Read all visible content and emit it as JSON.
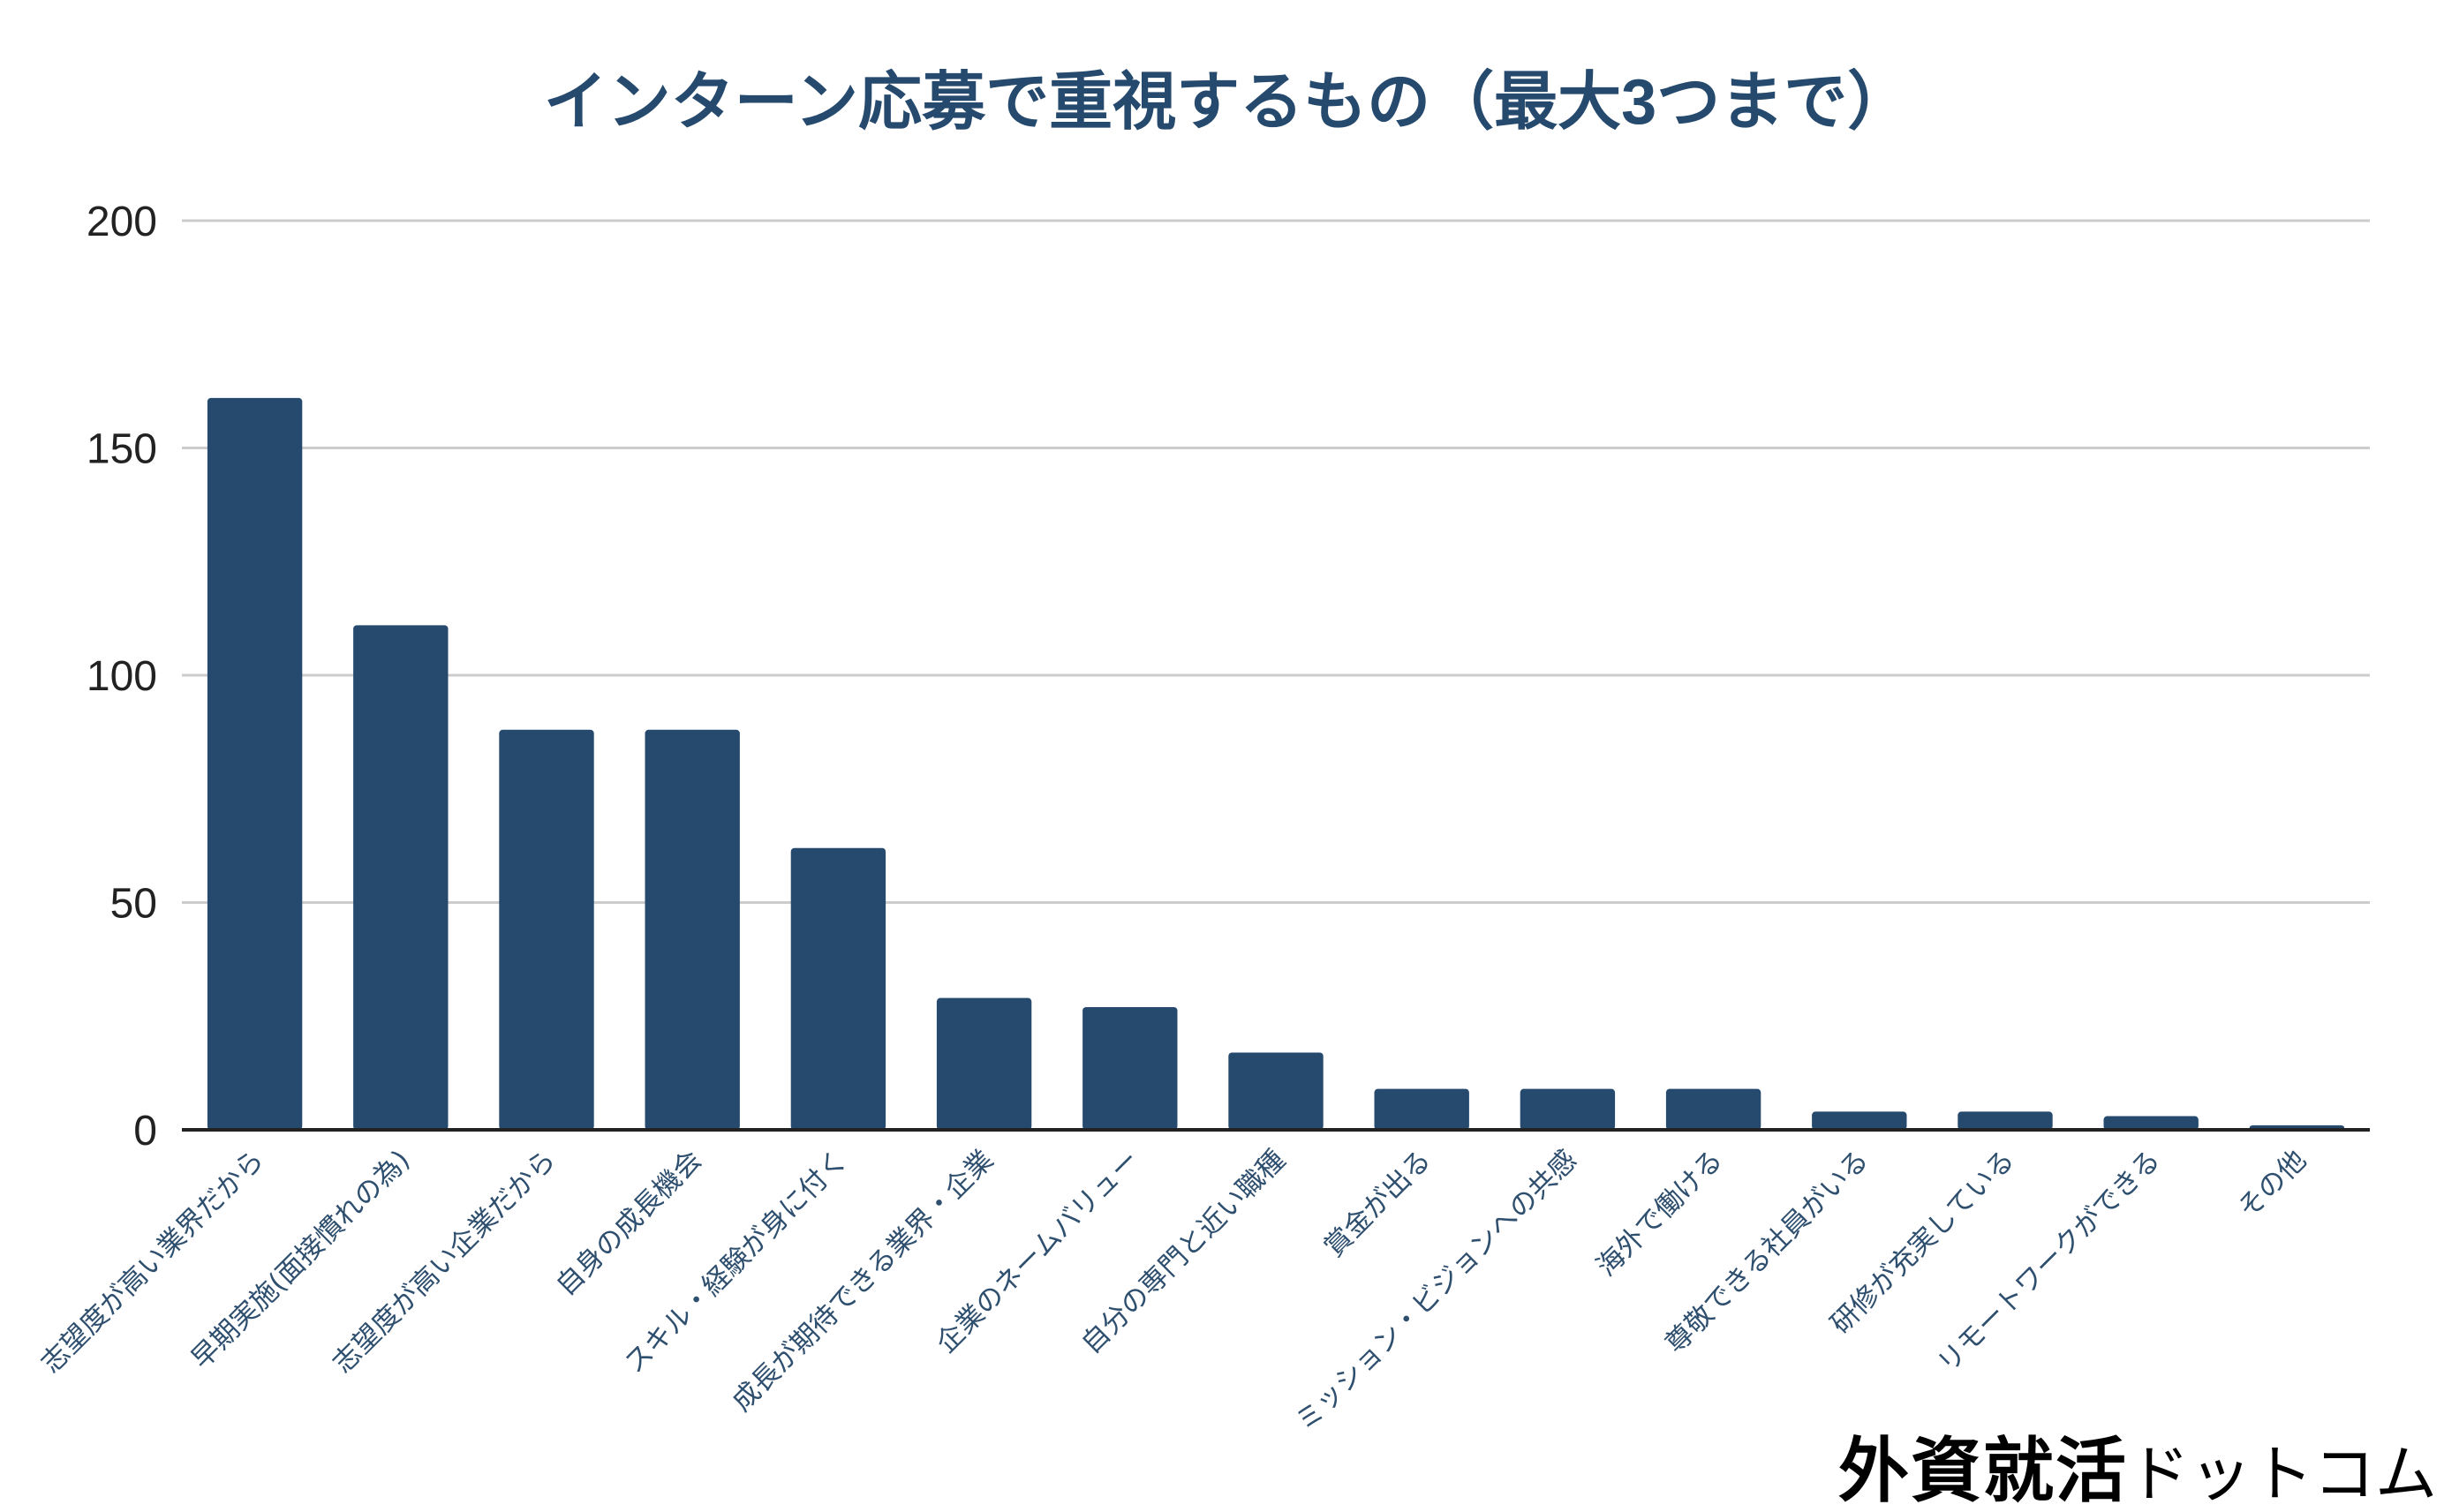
{
  "chart_data": {
    "type": "bar",
    "title": "インターン応募で重視するもの（最大3つまで）",
    "categories": [
      "志望度が高い業界だから",
      "早期実施(面接慣れの為)",
      "志望度が高い企業だから",
      "自身の成長機会",
      "スキル・経験が身に付く",
      "成長が期待できる業界・企業",
      "企業のネームバリュー",
      "自分の専門と近い職種",
      "賞金が出る",
      "ミッション・ビジョンへの共感",
      "海外で働ける",
      "尊敬できる社員がいる",
      "研修が充実している",
      "リモートワークができる",
      "その他"
    ],
    "values": [
      161,
      111,
      88,
      88,
      62,
      29,
      27,
      17,
      9,
      9,
      9,
      4,
      4,
      3,
      1
    ],
    "ylim": [
      0,
      200
    ],
    "yticks": [
      "0",
      "50",
      "100",
      "150",
      "200"
    ],
    "grid": true,
    "legend": "none",
    "colors": {
      "bar": "#254a6e",
      "title": "#254a6e",
      "tick_label": "#222222",
      "category_label": "#2f4f6f",
      "grid": "#cccccc",
      "axis": "#222222"
    }
  },
  "watermark": {
    "kanji": "外資就活",
    "kana": "ドットコム"
  }
}
